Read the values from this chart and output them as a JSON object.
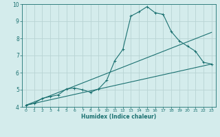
{
  "title": "",
  "xlabel": "Humidex (Indice chaleur)",
  "ylabel": "",
  "bg_color": "#d4ecec",
  "grid_color": "#b8d4d4",
  "line_color": "#1a7070",
  "xlim": [
    -0.5,
    23.5
  ],
  "ylim": [
    4,
    10
  ],
  "xticks": [
    0,
    1,
    2,
    3,
    4,
    5,
    6,
    7,
    8,
    9,
    10,
    11,
    12,
    13,
    14,
    15,
    16,
    17,
    18,
    19,
    20,
    21,
    22,
    23
  ],
  "yticks": [
    4,
    5,
    6,
    7,
    8,
    9,
    10
  ],
  "line1_x": [
    0,
    1,
    2,
    3,
    4,
    5,
    6,
    7,
    8,
    9,
    10,
    11,
    12,
    13,
    14,
    15,
    16,
    17,
    18,
    19,
    20,
    21,
    22,
    23
  ],
  "line1_y": [
    4.1,
    4.2,
    4.5,
    4.6,
    4.7,
    5.05,
    5.1,
    5.0,
    4.85,
    5.05,
    5.55,
    6.7,
    7.35,
    9.3,
    9.55,
    9.85,
    9.5,
    9.4,
    8.4,
    7.85,
    7.55,
    7.25,
    6.6,
    6.5
  ],
  "line2_x": [
    0,
    23
  ],
  "line2_y": [
    4.1,
    6.5
  ],
  "line3_x": [
    0,
    23
  ],
  "line3_y": [
    4.1,
    8.35
  ]
}
